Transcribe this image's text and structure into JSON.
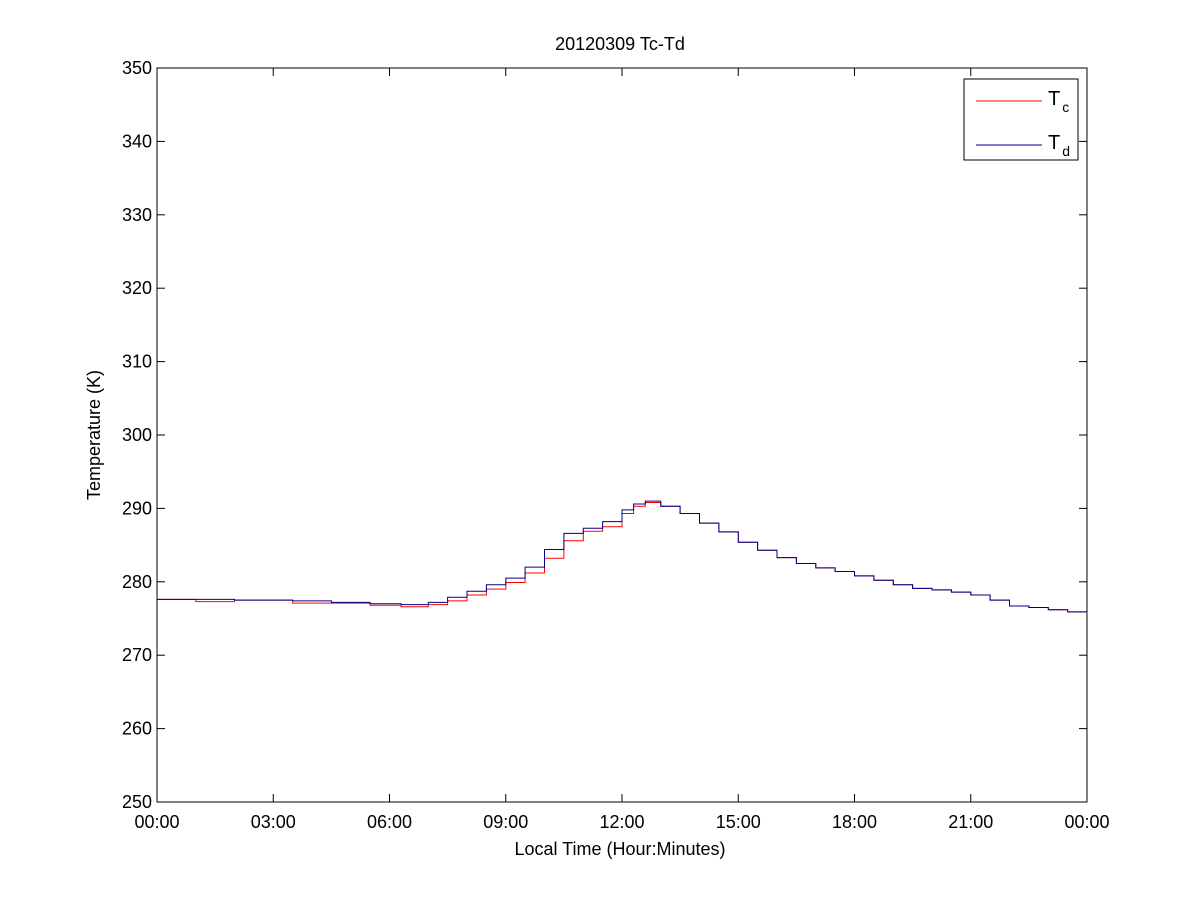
{
  "chart_data": {
    "type": "line",
    "title": "20120309 Tc-Td",
    "xlabel": "Local Time (Hour:Minutes)",
    "ylabel": "Temperature (K)",
    "xlim": [
      0,
      24
    ],
    "ylim": [
      250,
      350
    ],
    "x_ticks": [
      0,
      3,
      6,
      9,
      12,
      15,
      18,
      21,
      24
    ],
    "x_tick_labels": [
      "00:00",
      "03:00",
      "06:00",
      "09:00",
      "12:00",
      "15:00",
      "18:00",
      "21:00",
      "00:00"
    ],
    "y_ticks": [
      250,
      260,
      270,
      280,
      290,
      300,
      310,
      320,
      330,
      340,
      350
    ],
    "y_tick_labels": [
      "250",
      "260",
      "270",
      "280",
      "290",
      "300",
      "310",
      "320",
      "330",
      "340",
      "350"
    ],
    "grid": false,
    "legend_position": "top-right",
    "step": true,
    "legend_entries": [
      {
        "series": 0,
        "base": "T",
        "sub": "c"
      },
      {
        "series": 1,
        "base": "T",
        "sub": "d"
      }
    ],
    "series": [
      {
        "name": "Tc",
        "color": "#ff0000",
        "x": [
          0,
          1.0,
          2.0,
          3.5,
          4.5,
          5.5,
          6.3,
          7.0,
          7.5,
          8.0,
          8.5,
          9.0,
          9.5,
          10.0,
          10.5,
          11.0,
          11.5,
          12.0,
          12.3,
          12.6,
          13.0,
          13.5,
          14.0,
          14.5,
          15.0,
          15.5,
          16.0,
          16.5,
          17.0,
          17.5,
          18.0,
          18.5,
          19.0,
          19.5,
          20.0,
          20.5,
          21.0,
          21.5,
          22.0,
          22.5,
          23.0,
          23.5,
          24.0
        ],
        "y": [
          277.6,
          277.3,
          277.5,
          277.1,
          277.1,
          276.8,
          276.6,
          276.9,
          277.4,
          278.2,
          279.0,
          279.9,
          281.2,
          283.2,
          285.6,
          286.9,
          287.5,
          289.3,
          290.3,
          290.8,
          290.3,
          289.3,
          288.0,
          286.8,
          285.4,
          284.3,
          283.3,
          282.5,
          281.9,
          281.4,
          280.8,
          280.2,
          279.6,
          279.1,
          278.9,
          278.6,
          278.2,
          277.5,
          276.7,
          276.5,
          276.2,
          275.9,
          275.6
        ]
      },
      {
        "name": "Td",
        "color": "#00008b",
        "x": [
          0,
          1.0,
          2.0,
          3.5,
          4.5,
          5.5,
          6.3,
          7.0,
          7.5,
          8.0,
          8.5,
          9.0,
          9.5,
          10.0,
          10.5,
          11.0,
          11.5,
          12.0,
          12.3,
          12.6,
          13.0,
          13.5,
          14.0,
          14.5,
          15.0,
          15.5,
          16.0,
          16.5,
          17.0,
          17.5,
          18.0,
          18.5,
          19.0,
          19.5,
          20.0,
          20.5,
          21.0,
          21.5,
          22.0,
          22.5,
          23.0,
          23.5,
          24.0
        ],
        "y": [
          277.6,
          277.6,
          277.5,
          277.4,
          277.2,
          277.0,
          276.9,
          277.2,
          277.9,
          278.7,
          279.6,
          280.5,
          282.0,
          284.4,
          286.6,
          287.3,
          288.2,
          289.8,
          290.6,
          291.0,
          290.3,
          289.3,
          288.0,
          286.8,
          285.4,
          284.3,
          283.3,
          282.5,
          281.9,
          281.4,
          280.8,
          280.2,
          279.6,
          279.1,
          278.9,
          278.6,
          278.2,
          277.5,
          276.7,
          276.5,
          276.2,
          275.9,
          275.6
        ]
      }
    ]
  }
}
